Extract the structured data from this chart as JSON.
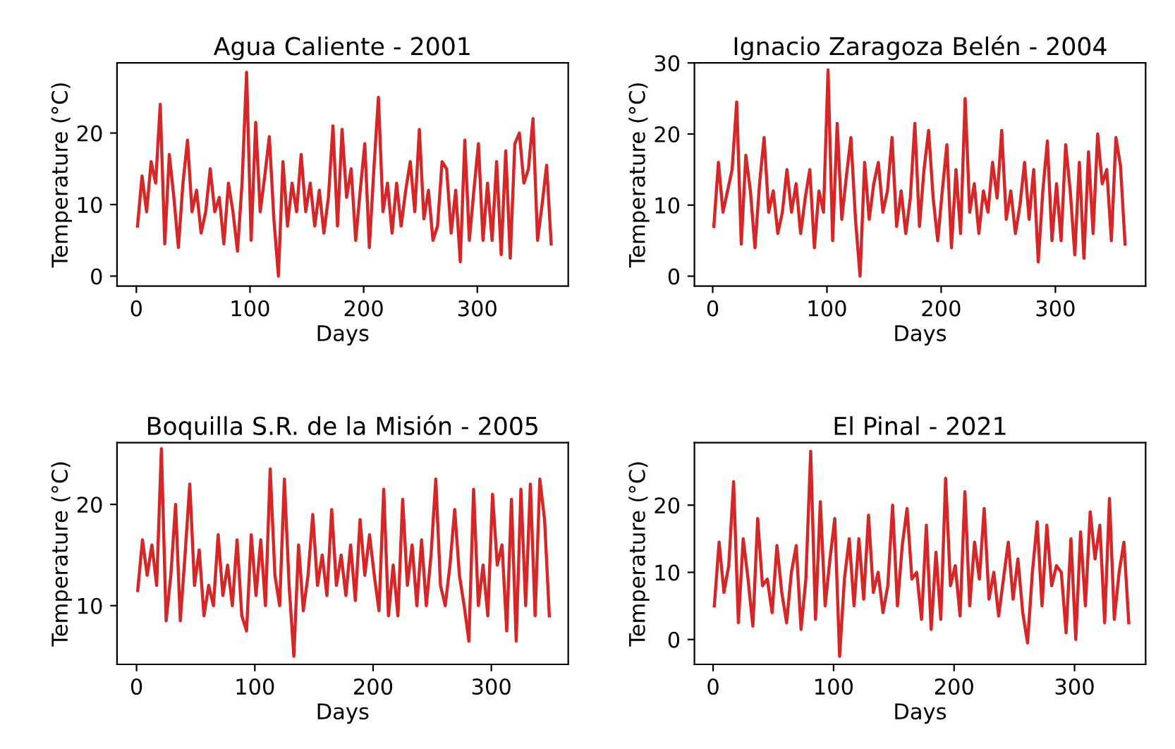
{
  "chart_data": [
    {
      "type": "line",
      "title": "Agua Caliente - 2001",
      "xlabel": "Days",
      "ylabel": "Temperature (°C)",
      "xlim": [
        -17,
        380
      ],
      "ylim": [
        -1.4,
        29.8
      ],
      "xticks": [
        0,
        100,
        200,
        300
      ],
      "yticks": [
        0,
        10,
        20
      ],
      "grid": false,
      "legend": false,
      "x": [
        1,
        5,
        9,
        13,
        17,
        21,
        25,
        29,
        33,
        37,
        41,
        45,
        49,
        53,
        57,
        61,
        65,
        69,
        73,
        77,
        81,
        85,
        89,
        93,
        97,
        101,
        105,
        109,
        113,
        117,
        121,
        125,
        129,
        133,
        137,
        141,
        145,
        149,
        153,
        157,
        161,
        165,
        169,
        173,
        177,
        181,
        185,
        189,
        193,
        197,
        201,
        205,
        209,
        213,
        217,
        221,
        225,
        229,
        233,
        237,
        241,
        245,
        249,
        253,
        257,
        261,
        265,
        269,
        273,
        277,
        281,
        285,
        289,
        293,
        297,
        301,
        305,
        309,
        313,
        317,
        321,
        325,
        329,
        333,
        337,
        341,
        345,
        349,
        353,
        357,
        361,
        365
      ],
      "series": [
        {
          "color": "#d62728",
          "values": [
            7,
            14,
            9,
            16,
            13,
            24,
            4.5,
            17,
            11,
            4,
            13,
            19,
            9,
            12,
            6,
            9,
            15,
            9,
            11,
            4.5,
            13,
            9,
            3.5,
            13,
            28.5,
            5,
            21.5,
            9,
            14,
            19.5,
            8,
            0,
            16,
            7,
            13,
            9,
            17,
            9,
            13,
            7,
            12,
            6,
            11,
            21,
            7,
            20.5,
            11,
            15,
            5,
            12,
            18.5,
            4,
            15,
            25,
            9,
            13,
            6,
            13,
            7,
            12,
            16,
            9,
            20.5,
            8,
            12,
            5,
            7,
            16,
            15,
            6,
            12,
            2,
            19,
            5,
            12,
            18.5,
            5,
            13,
            5,
            16,
            3,
            17.5,
            2.5,
            18.5,
            20,
            13,
            15,
            22,
            5,
            10,
            15.5,
            4.5
          ]
        }
      ]
    },
    {
      "type": "line",
      "title": "Ignacio Zaragoza Belén - 2004",
      "xlabel": "Days",
      "ylabel": "Temperature (°C)",
      "xlim": [
        -16,
        379
      ],
      "ylim": [
        -1.4,
        30
      ],
      "xticks": [
        0,
        100,
        200,
        300
      ],
      "yticks": [
        0,
        10,
        20,
        30
      ],
      "grid": false,
      "legend": false,
      "x": [
        1,
        5,
        9,
        13,
        17,
        21,
        25,
        29,
        33,
        37,
        41,
        45,
        49,
        53,
        57,
        61,
        65,
        69,
        73,
        77,
        81,
        85,
        89,
        93,
        97,
        101,
        105,
        109,
        113,
        117,
        121,
        125,
        129,
        133,
        137,
        141,
        145,
        149,
        153,
        157,
        161,
        165,
        169,
        173,
        177,
        181,
        185,
        189,
        193,
        197,
        201,
        205,
        209,
        213,
        217,
        221,
        225,
        229,
        233,
        237,
        241,
        245,
        249,
        253,
        257,
        261,
        265,
        269,
        273,
        277,
        281,
        285,
        289,
        293,
        297,
        301,
        305,
        309,
        313,
        317,
        321,
        325,
        329,
        333,
        337,
        341,
        345,
        349,
        353,
        357,
        361
      ],
      "series": [
        {
          "color": "#d62728",
          "values": [
            7,
            16,
            9,
            12,
            15,
            24.5,
            4.5,
            17,
            12,
            4,
            13,
            19.5,
            9,
            12,
            6,
            9,
            15,
            9,
            13,
            6,
            11,
            15,
            4,
            12,
            9,
            29,
            5,
            21.5,
            8,
            14,
            19.5,
            8,
            0,
            16,
            8,
            13,
            16,
            9,
            12,
            19.5,
            7,
            12,
            6,
            11,
            21.5,
            7,
            15,
            20.5,
            11,
            5,
            12,
            18.5,
            4,
            15,
            6,
            25,
            9,
            13,
            6,
            12,
            9,
            16,
            11,
            20.5,
            8,
            12,
            6,
            10,
            16,
            8,
            15,
            2,
            12,
            19,
            5,
            13,
            5,
            18.5,
            12,
            3,
            16,
            2.5,
            17.5,
            6,
            20,
            13,
            15,
            5,
            19.5,
            15.5,
            4.5
          ]
        }
      ]
    },
    {
      "type": "line",
      "title": "Boquilla S.R. de la Misión - 2005",
      "xlabel": "Days",
      "ylabel": "Temperature (°C)",
      "xlim": [
        -16.5,
        365
      ],
      "ylim": [
        4.2,
        26.1
      ],
      "xticks": [
        0,
        100,
        200,
        300
      ],
      "yticks": [
        10,
        20
      ],
      "grid": false,
      "legend": false,
      "x": [
        1,
        5,
        9,
        13,
        17,
        21,
        25,
        29,
        33,
        37,
        41,
        45,
        49,
        53,
        57,
        61,
        65,
        69,
        73,
        77,
        81,
        85,
        89,
        93,
        97,
        101,
        105,
        109,
        113,
        117,
        121,
        125,
        129,
        133,
        137,
        141,
        145,
        149,
        153,
        157,
        161,
        165,
        169,
        173,
        177,
        181,
        185,
        189,
        193,
        197,
        201,
        205,
        209,
        213,
        217,
        221,
        225,
        229,
        233,
        237,
        241,
        245,
        249,
        253,
        257,
        261,
        265,
        269,
        273,
        277,
        281,
        285,
        289,
        293,
        297,
        301,
        305,
        309,
        313,
        317,
        321,
        325,
        329,
        333,
        337,
        341,
        345,
        349
      ],
      "series": [
        {
          "color": "#d62728",
          "values": [
            11.5,
            16.5,
            13,
            16,
            12,
            25.5,
            8.5,
            13,
            20,
            8.5,
            15,
            22,
            12,
            15.5,
            9,
            12,
            10,
            17,
            11,
            14,
            10,
            16.5,
            9,
            7.5,
            17,
            11,
            16.5,
            10,
            23.5,
            13,
            10,
            22.5,
            12,
            5,
            16,
            9.5,
            13,
            19,
            12,
            15,
            11,
            19.5,
            12,
            15,
            11,
            16,
            10.5,
            18.5,
            13,
            17,
            13,
            9.5,
            21.5,
            9,
            14,
            9,
            20.5,
            12,
            16,
            10,
            16.5,
            10,
            15,
            22.5,
            12,
            10,
            14,
            19.5,
            13,
            10,
            6.5,
            21.5,
            10,
            14,
            9,
            21,
            14,
            16,
            7.5,
            20.5,
            6.5,
            21.5,
            10,
            22,
            9,
            22.5,
            18.5,
            9
          ]
        }
      ]
    },
    {
      "type": "line",
      "title": "El Pinal - 2021",
      "xlabel": "Days",
      "ylabel": "Temperature (°C)",
      "xlim": [
        -15.5,
        359
      ],
      "ylim": [
        -3.7,
        29.3
      ],
      "xticks": [
        0,
        100,
        200,
        300
      ],
      "yticks": [
        0,
        10,
        20
      ],
      "grid": false,
      "legend": false,
      "x": [
        1,
        5,
        9,
        13,
        17,
        21,
        25,
        29,
        33,
        37,
        41,
        45,
        49,
        53,
        57,
        61,
        65,
        69,
        73,
        77,
        81,
        85,
        89,
        93,
        97,
        101,
        105,
        109,
        113,
        117,
        121,
        125,
        129,
        133,
        137,
        141,
        145,
        149,
        153,
        157,
        161,
        165,
        169,
        173,
        177,
        181,
        185,
        189,
        193,
        197,
        201,
        205,
        209,
        213,
        217,
        221,
        225,
        229,
        233,
        237,
        241,
        245,
        249,
        253,
        257,
        261,
        265,
        269,
        273,
        277,
        281,
        285,
        289,
        293,
        297,
        301,
        305,
        309,
        313,
        317,
        321,
        325,
        329,
        333,
        337,
        341,
        345
      ],
      "series": [
        {
          "color": "#d62728",
          "values": [
            5,
            14.5,
            7,
            11,
            23.5,
            2.5,
            15,
            9,
            2,
            18,
            8,
            9,
            4,
            14,
            7,
            2.5,
            10,
            14,
            1.5,
            9,
            28,
            3,
            20.5,
            5,
            12,
            18,
            -2.5,
            9,
            15,
            5,
            15,
            6,
            18.5,
            7,
            10,
            4,
            8,
            20,
            5,
            14,
            19.5,
            9,
            10,
            3,
            17,
            1.5,
            13,
            3,
            24,
            8,
            11,
            3.5,
            22,
            5,
            14.5,
            9,
            19.5,
            6,
            10,
            3.5,
            9,
            14.5,
            6,
            12,
            4,
            -0.5,
            10,
            17.5,
            5,
            17,
            8,
            11,
            10,
            1,
            15,
            0,
            16,
            5,
            19,
            12,
            17,
            2.5,
            21,
            3,
            10,
            14.5,
            2.5
          ]
        }
      ]
    }
  ]
}
